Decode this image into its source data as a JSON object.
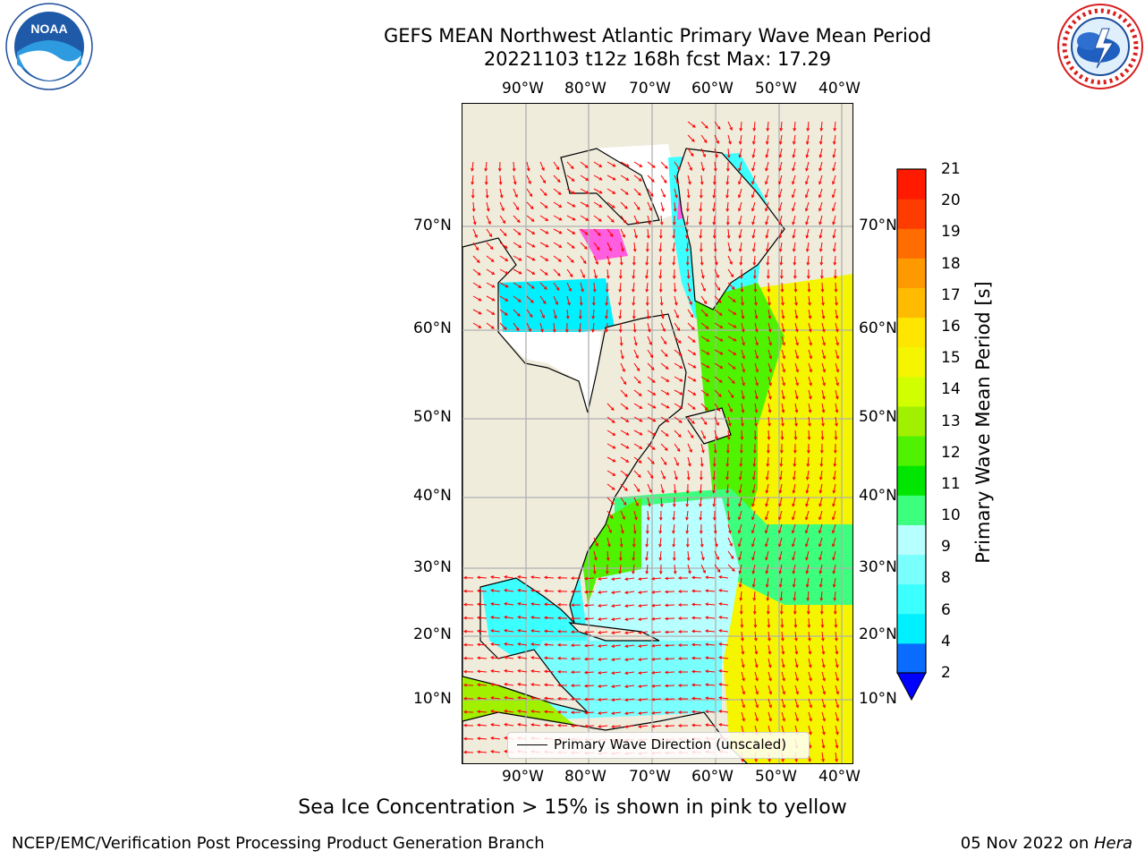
{
  "header": {
    "title_line1": "GEFS MEAN Northwest Atlantic Primary Wave Mean Period",
    "title_line2": "20221103 t12z 168h fcst   Max: 17.29"
  },
  "map": {
    "lon_labels": [
      "90°W",
      "80°W",
      "70°W",
      "60°W",
      "50°W",
      "40°W"
    ],
    "lat_labels": [
      "70°N",
      "60°N",
      "50°N",
      "40°N",
      "30°N",
      "20°N",
      "10°N"
    ],
    "land_color": "#efecdc",
    "vector_color": "#ff0000",
    "legend_label": "Primary Wave Direction (unscaled)"
  },
  "colorbar": {
    "title": "Primary Wave Mean Period [s]",
    "tick_labels": [
      "2",
      "4",
      "6",
      "8",
      "9",
      "10",
      "11",
      "12",
      "13",
      "14",
      "15",
      "16",
      "17",
      "18",
      "19",
      "20",
      "21"
    ],
    "colors": [
      "#0a6cff",
      "#00f0ff",
      "#3cffff",
      "#7affff",
      "#b8ffff",
      "#3cff7d",
      "#00e600",
      "#4ff200",
      "#a0f000",
      "#d2ff00",
      "#f5f500",
      "#ffe600",
      "#ffbb00",
      "#ff9900",
      "#ff6c00",
      "#ff3c00",
      "#ff1a00"
    ],
    "under_color": "#0000ff"
  },
  "footer": {
    "footnote": "Sea Ice Concentration > 15% is shown in pink to yellow",
    "credit_left": "NCEP/EMC/Verification Post Processing Product Generation Branch",
    "credit_date": "05 Nov 2022 on ",
    "credit_machine": "Hera"
  },
  "logos": {
    "noaa_text": "NOAA",
    "nws_text": "NATIONAL WEATHER SERVICE"
  }
}
